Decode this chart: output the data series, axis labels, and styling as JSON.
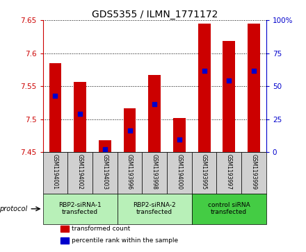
{
  "title": "GDS5355 / ILMN_1771172",
  "samples": [
    "GSM1194001",
    "GSM1194002",
    "GSM1194003",
    "GSM1193996",
    "GSM1193998",
    "GSM1194000",
    "GSM1193995",
    "GSM1193997",
    "GSM1193999"
  ],
  "red_values": [
    7.585,
    7.556,
    7.468,
    7.516,
    7.567,
    7.502,
    7.645,
    7.618,
    7.645
  ],
  "blue_values": [
    7.535,
    7.508,
    7.454,
    7.483,
    7.523,
    7.469,
    7.573,
    7.558,
    7.573
  ],
  "ylim_left": [
    7.45,
    7.65
  ],
  "ylim_right": [
    0,
    100
  ],
  "yticks_left": [
    7.45,
    7.5,
    7.55,
    7.6,
    7.65
  ],
  "yticks_right": [
    0,
    25,
    50,
    75,
    100
  ],
  "groups": [
    {
      "label": "RBP2-siRNA-1\ntransfected",
      "start": 0,
      "end": 3,
      "color": "#b8f0b8"
    },
    {
      "label": "RBP2-siRNA-2\ntransfected",
      "start": 3,
      "end": 6,
      "color": "#b8f0b8"
    },
    {
      "label": "control siRNA\ntransfected",
      "start": 6,
      "end": 9,
      "color": "#44cc44"
    }
  ],
  "bar_color": "#cc0000",
  "dot_color": "#0000cc",
  "base_value": 7.45,
  "bar_width": 0.5,
  "dot_size": 18,
  "left_axis_color": "#cc0000",
  "right_axis_color": "#0000cc",
  "sample_box_color": "#d0d0d0",
  "protocol_label": "protocol",
  "legend_items": [
    {
      "color": "#cc0000",
      "label": "transformed count"
    },
    {
      "color": "#0000cc",
      "label": "percentile rank within the sample"
    }
  ]
}
